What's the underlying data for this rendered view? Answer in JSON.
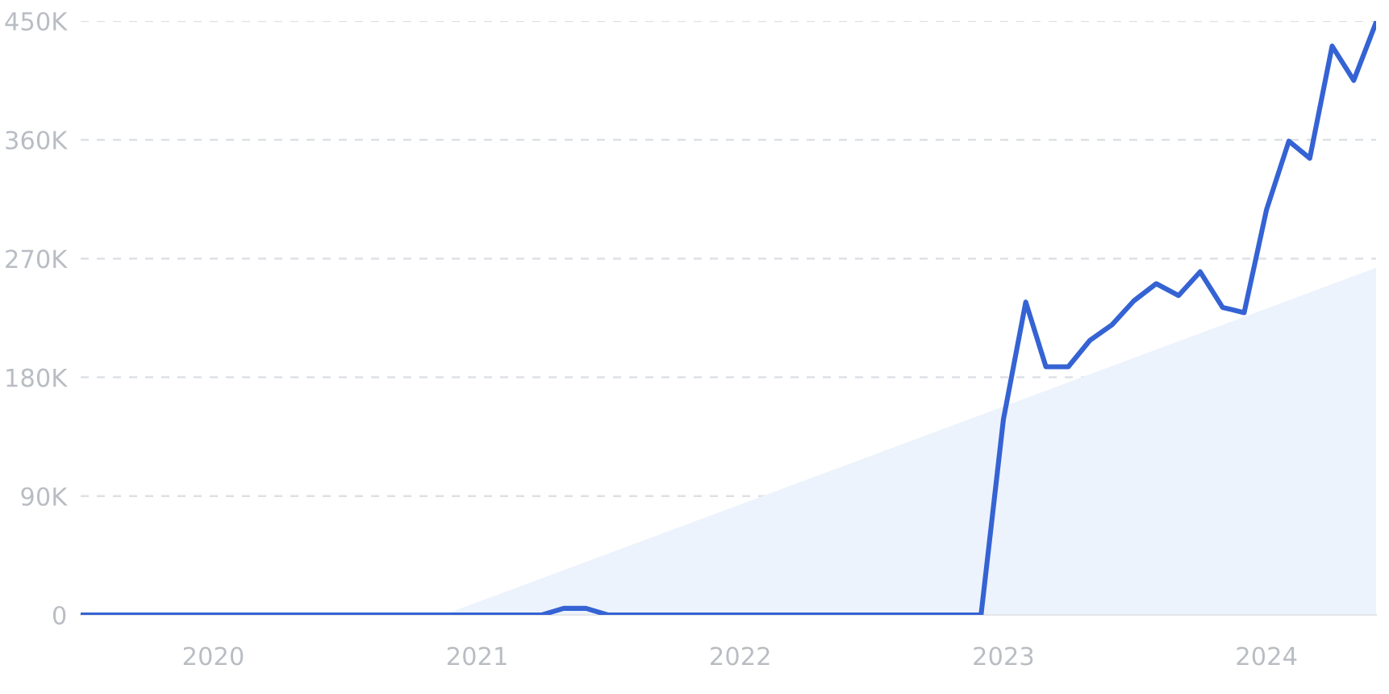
{
  "chart_data": {
    "type": "line",
    "x": [
      "2019-07",
      "2019-08",
      "2019-09",
      "2019-10",
      "2019-11",
      "2019-12",
      "2020-01",
      "2020-02",
      "2020-03",
      "2020-04",
      "2020-05",
      "2020-06",
      "2020-07",
      "2020-08",
      "2020-09",
      "2020-10",
      "2020-11",
      "2020-12",
      "2021-01",
      "2021-02",
      "2021-03",
      "2021-04",
      "2021-05",
      "2021-06",
      "2021-07",
      "2021-08",
      "2021-09",
      "2021-10",
      "2021-11",
      "2021-12",
      "2022-01",
      "2022-02",
      "2022-03",
      "2022-04",
      "2022-05",
      "2022-06",
      "2022-07",
      "2022-08",
      "2022-09",
      "2022-10",
      "2022-11",
      "2022-12",
      "2023-01",
      "2023-02",
      "2023-03",
      "2023-04",
      "2023-05",
      "2023-06",
      "2023-07",
      "2023-08",
      "2023-09",
      "2023-10",
      "2023-11",
      "2023-12",
      "2024-01",
      "2024-02",
      "2024-03",
      "2024-04",
      "2024-05",
      "2024-06"
    ],
    "series": [
      {
        "type": "area",
        "color": "#edf3fc",
        "x": [
          "2020-11-15",
          "2024-06"
        ],
        "values": [
          0,
          263000
        ]
      },
      {
        "color": "#3563d4",
        "values": [
          0,
          0,
          0,
          0,
          0,
          0,
          0,
          0,
          0,
          0,
          0,
          0,
          0,
          0,
          0,
          0,
          0,
          0,
          0,
          0,
          0,
          0,
          5000,
          5000,
          0,
          0,
          0,
          0,
          0,
          0,
          0,
          0,
          0,
          0,
          0,
          0,
          0,
          0,
          0,
          0,
          0,
          0,
          148000,
          237000,
          188000,
          188000,
          208000,
          220000,
          238000,
          251000,
          242000,
          260000,
          233000,
          229000,
          307000,
          359000,
          346000,
          431000,
          405000,
          449000
        ]
      }
    ],
    "xlim": [
      "2019-07",
      "2024-06"
    ],
    "xticks": [
      {
        "value": "2020",
        "label": "2020"
      },
      {
        "value": "2021",
        "label": "2021"
      },
      {
        "value": "2022",
        "label": "2022"
      },
      {
        "value": "2023",
        "label": "2023"
      },
      {
        "value": "2024",
        "label": "2024"
      }
    ],
    "ylim": [
      0,
      450000
    ],
    "yticks": [
      0,
      {
        "value": 90000,
        "label": "90K"
      },
      {
        "value": 180000,
        "label": "180K"
      },
      {
        "value": 270000,
        "label": "270K"
      },
      {
        "value": 360000,
        "label": "360K"
      },
      {
        "value": 450000,
        "label": "450K"
      }
    ],
    "grid": "y",
    "line_style": "solid",
    "marker": "none"
  }
}
